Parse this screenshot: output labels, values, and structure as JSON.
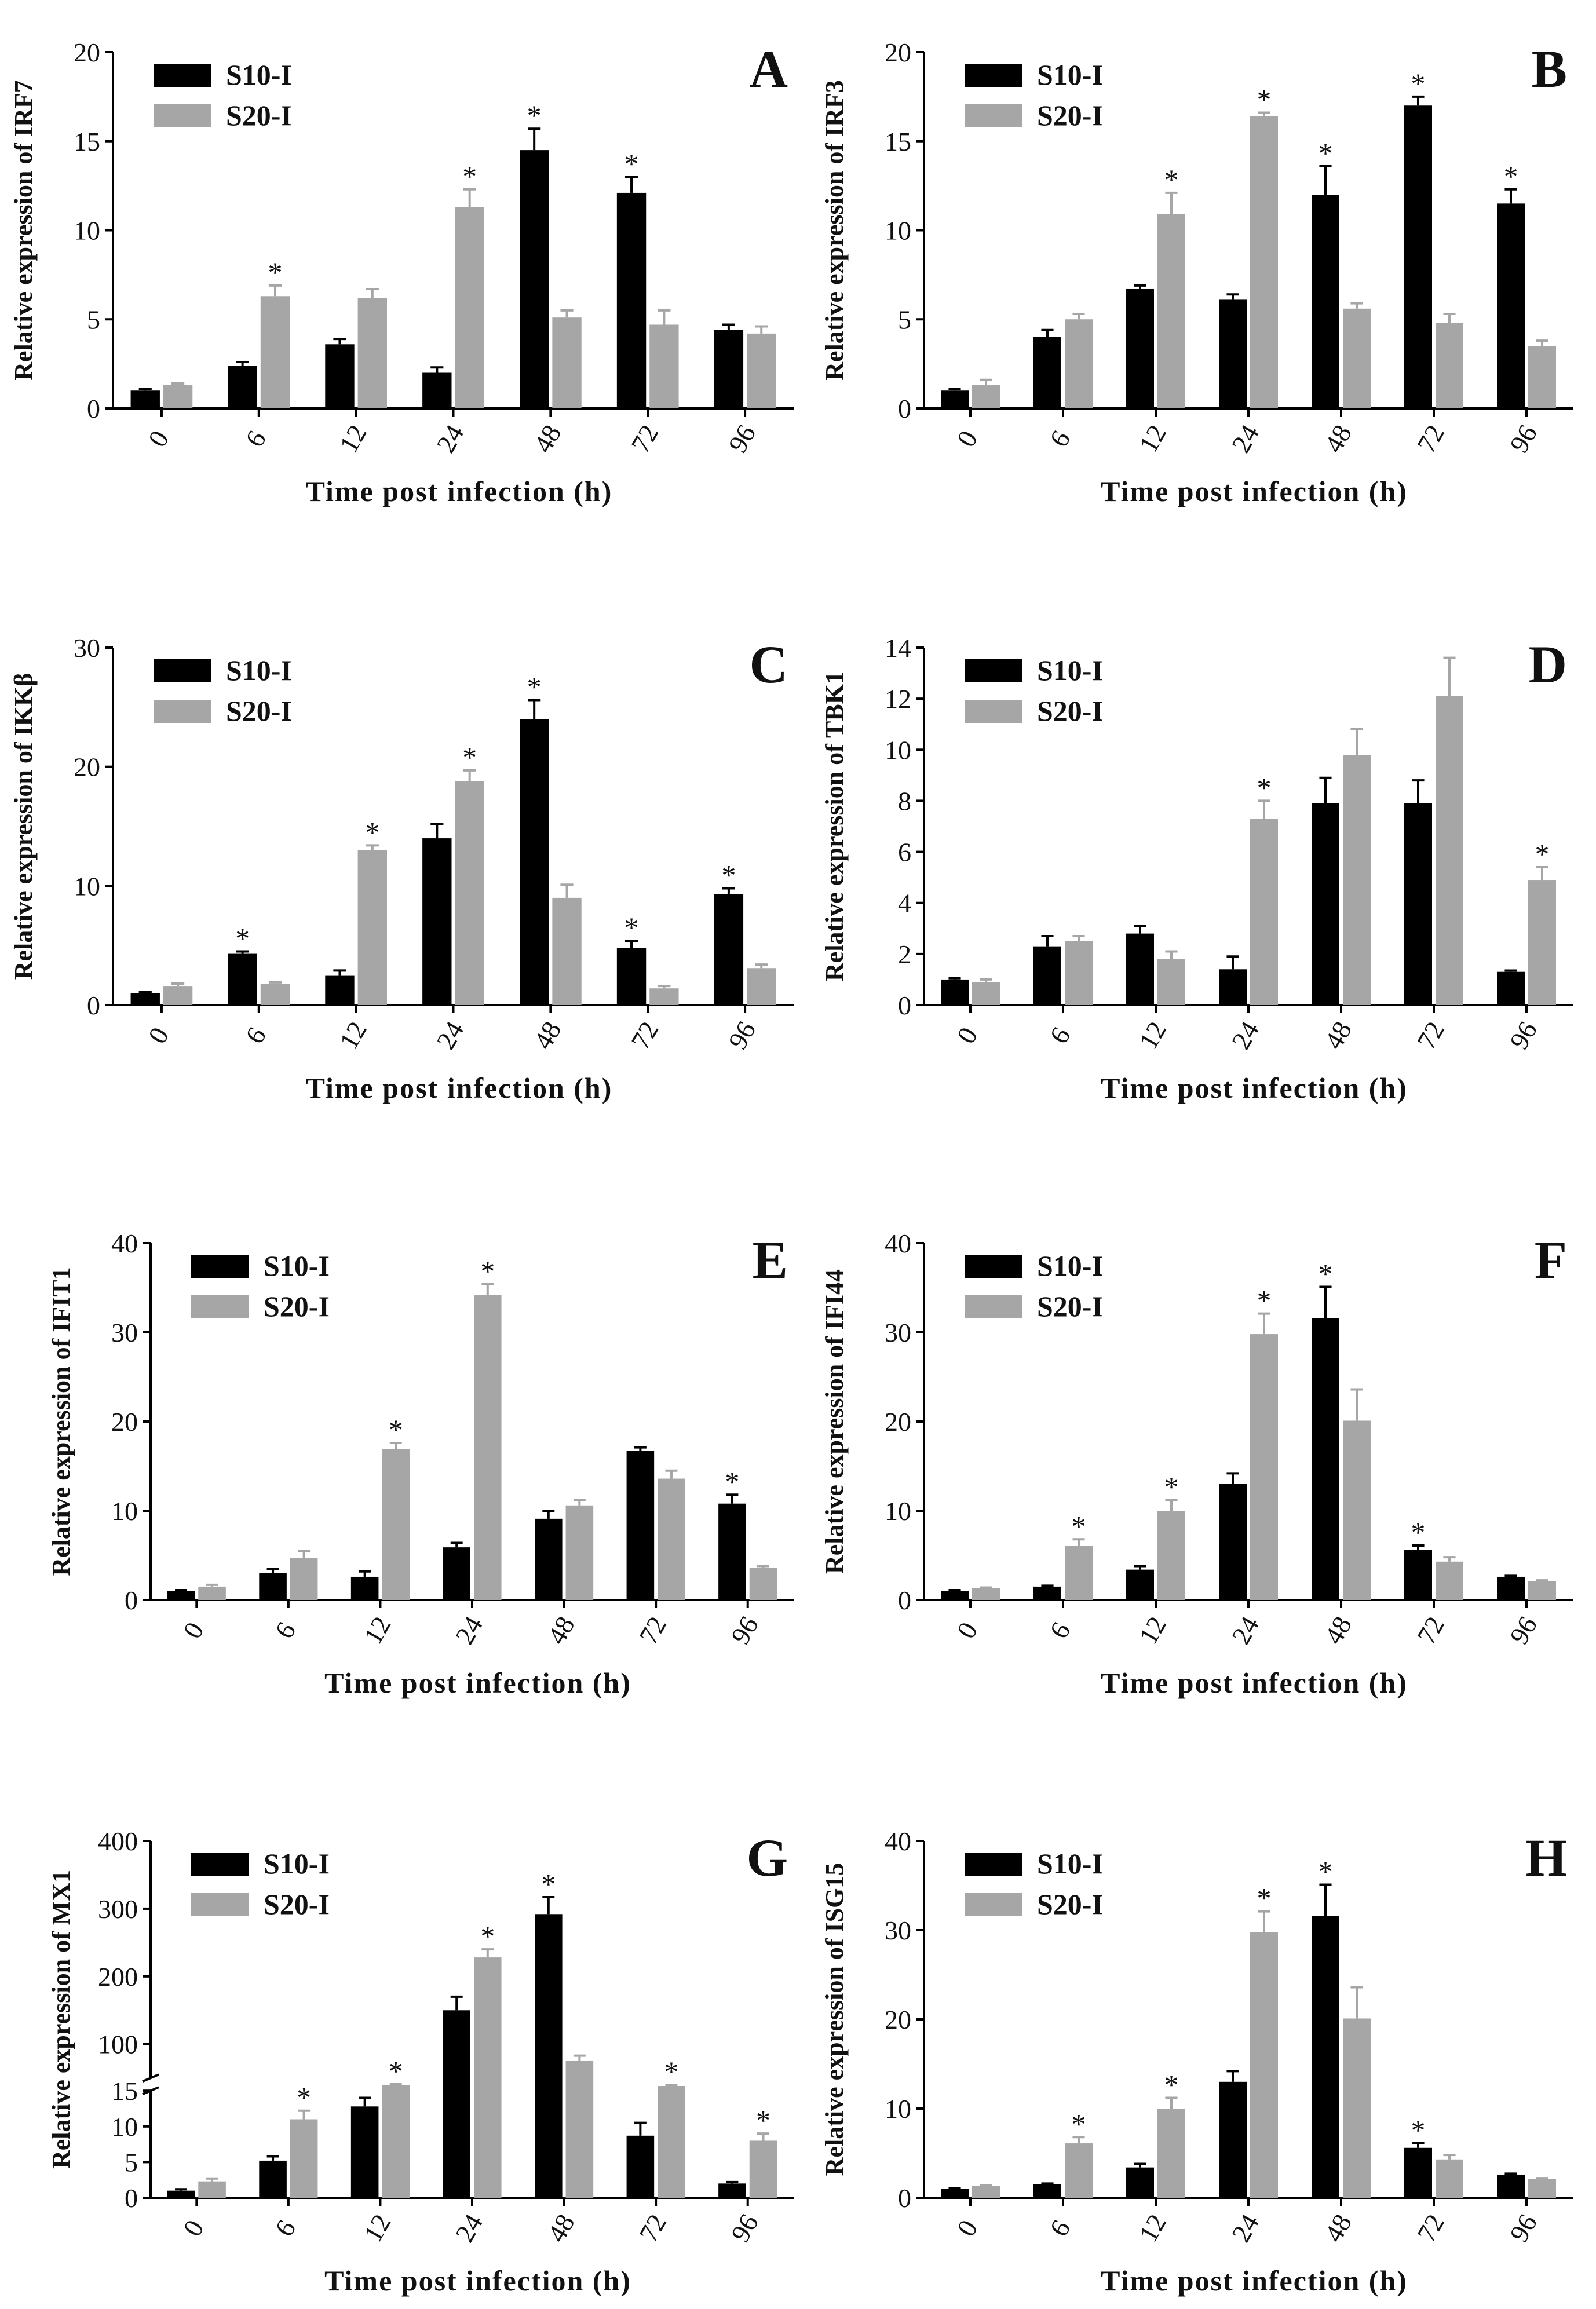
{
  "figure_title": "",
  "colors": {
    "S10-I": "#000000",
    "S20-I": "#a6a6a6"
  },
  "chart_data": [
    {
      "panel": "A",
      "type": "bar",
      "categories": [
        "0",
        "6",
        "12",
        "24",
        "48",
        "72",
        "96"
      ],
      "xlabel": "Time post infection (h)",
      "ylabel": "Relative expression of IRF7",
      "ylim": [
        0,
        20
      ],
      "yticks": [
        0,
        5,
        10,
        15,
        20
      ],
      "legend": [
        "S10-I",
        "S20-I"
      ],
      "series": [
        {
          "name": "S10-I",
          "values": [
            1.0,
            2.4,
            3.6,
            2.0,
            14.5,
            12.1,
            4.4
          ],
          "errors": [
            0.1,
            0.2,
            0.3,
            0.3,
            1.2,
            0.9,
            0.3
          ],
          "sig": [
            false,
            false,
            false,
            false,
            true,
            true,
            false
          ]
        },
        {
          "name": "S20-I",
          "values": [
            1.3,
            6.3,
            6.2,
            11.3,
            5.1,
            4.7,
            4.2
          ],
          "errors": [
            0.1,
            0.6,
            0.5,
            1.0,
            0.4,
            0.8,
            0.4
          ],
          "sig": [
            false,
            true,
            false,
            true,
            false,
            false,
            false
          ]
        }
      ]
    },
    {
      "panel": "B",
      "type": "bar",
      "categories": [
        "0",
        "6",
        "12",
        "24",
        "48",
        "72",
        "96"
      ],
      "xlabel": "Time post infection (h)",
      "ylabel": "Relative expression of IRF3",
      "ylim": [
        0,
        20
      ],
      "yticks": [
        0,
        5,
        10,
        15,
        20
      ],
      "legend": [
        "S10-I",
        "S20-I"
      ],
      "series": [
        {
          "name": "S10-I",
          "values": [
            1.0,
            4.0,
            6.7,
            6.1,
            12.0,
            17.0,
            11.5
          ],
          "errors": [
            0.1,
            0.4,
            0.2,
            0.3,
            1.6,
            0.5,
            0.8
          ],
          "sig": [
            false,
            false,
            false,
            false,
            true,
            true,
            true
          ]
        },
        {
          "name": "S20-I",
          "values": [
            1.3,
            5.0,
            10.9,
            16.4,
            5.6,
            4.8,
            3.5
          ],
          "errors": [
            0.3,
            0.3,
            1.2,
            0.2,
            0.3,
            0.5,
            0.3
          ],
          "sig": [
            false,
            false,
            true,
            true,
            false,
            false,
            false
          ]
        }
      ]
    },
    {
      "panel": "C",
      "type": "bar",
      "categories": [
        "0",
        "6",
        "12",
        "24",
        "48",
        "72",
        "96"
      ],
      "xlabel": "Time post infection (h)",
      "ylabel": "Relative expression of IKKβ",
      "ylim": [
        0,
        30
      ],
      "yticks": [
        0,
        10,
        20,
        30
      ],
      "legend": [
        "S10-I",
        "S20-I"
      ],
      "series": [
        {
          "name": "S10-I",
          "values": [
            1.0,
            4.3,
            2.5,
            14.0,
            24.0,
            4.8,
            9.3
          ],
          "errors": [
            0.1,
            0.2,
            0.4,
            1.2,
            1.6,
            0.6,
            0.5
          ],
          "sig": [
            false,
            true,
            false,
            false,
            true,
            true,
            true
          ]
        },
        {
          "name": "S20-I",
          "values": [
            1.6,
            1.8,
            13.0,
            18.8,
            9.0,
            1.4,
            3.1
          ],
          "errors": [
            0.2,
            0.1,
            0.4,
            0.9,
            1.1,
            0.2,
            0.3
          ],
          "sig": [
            false,
            false,
            true,
            true,
            false,
            false,
            false
          ]
        }
      ]
    },
    {
      "panel": "D",
      "type": "bar",
      "categories": [
        "0",
        "6",
        "12",
        "24",
        "48",
        "72",
        "96"
      ],
      "xlabel": "Time post infection (h)",
      "ylabel": "Relative expression of TBK1",
      "ylim": [
        0,
        14
      ],
      "yticks": [
        0,
        2,
        4,
        6,
        8,
        10,
        12,
        14
      ],
      "legend": [
        "S10-I",
        "S20-I"
      ],
      "series": [
        {
          "name": "S10-I",
          "values": [
            1.0,
            2.3,
            2.8,
            1.4,
            7.9,
            7.9,
            1.3
          ],
          "errors": [
            0.05,
            0.4,
            0.3,
            0.5,
            1.0,
            0.9,
            0.05
          ],
          "sig": [
            false,
            false,
            false,
            false,
            false,
            false,
            false
          ]
        },
        {
          "name": "S20-I",
          "values": [
            0.9,
            2.5,
            1.8,
            7.3,
            9.8,
            12.1,
            4.9
          ],
          "errors": [
            0.1,
            0.2,
            0.3,
            0.7,
            1.0,
            1.5,
            0.5
          ],
          "sig": [
            false,
            false,
            false,
            true,
            false,
            false,
            true
          ]
        }
      ]
    },
    {
      "panel": "E",
      "type": "bar",
      "categories": [
        "0",
        "6",
        "12",
        "24",
        "48",
        "72",
        "96"
      ],
      "xlabel": "Time post infection (h)",
      "ylabel": "Relative expression of IFIT1",
      "ylim": [
        0,
        40
      ],
      "yticks": [
        0,
        10,
        20,
        30,
        40
      ],
      "legend": [
        "S10-I",
        "S20-I"
      ],
      "series": [
        {
          "name": "S10-I",
          "values": [
            1.0,
            3.0,
            2.6,
            5.9,
            9.1,
            16.7,
            10.8
          ],
          "errors": [
            0.1,
            0.5,
            0.6,
            0.5,
            0.9,
            0.4,
            1.0
          ],
          "sig": [
            false,
            false,
            false,
            false,
            false,
            false,
            true
          ]
        },
        {
          "name": "S20-I",
          "values": [
            1.5,
            4.7,
            16.9,
            34.2,
            10.6,
            13.6,
            3.6
          ],
          "errors": [
            0.2,
            0.8,
            0.7,
            1.2,
            0.6,
            0.9,
            0.2
          ],
          "sig": [
            false,
            false,
            true,
            true,
            false,
            false,
            false
          ]
        }
      ]
    },
    {
      "panel": "F",
      "type": "bar",
      "categories": [
        "0",
        "6",
        "12",
        "24",
        "48",
        "72",
        "96"
      ],
      "xlabel": "Time post infection (h)",
      "ylabel": "Relative expression of IFI44",
      "ylim": [
        0,
        40
      ],
      "yticks": [
        0,
        10,
        20,
        30,
        40
      ],
      "legend": [
        "S10-I",
        "S20-I"
      ],
      "series": [
        {
          "name": "S10-I",
          "values": [
            1.0,
            1.5,
            3.4,
            13.0,
            31.6,
            5.6,
            2.6
          ],
          "errors": [
            0.1,
            0.1,
            0.4,
            1.2,
            3.5,
            0.5,
            0.1
          ],
          "sig": [
            false,
            false,
            false,
            false,
            true,
            true,
            false
          ]
        },
        {
          "name": "S20-I",
          "values": [
            1.3,
            6.1,
            10.0,
            29.8,
            20.1,
            4.3,
            2.1
          ],
          "errors": [
            0.1,
            0.7,
            1.2,
            2.3,
            3.5,
            0.5,
            0.1
          ],
          "sig": [
            false,
            true,
            true,
            true,
            false,
            false,
            false
          ]
        }
      ]
    },
    {
      "panel": "G",
      "type": "bar",
      "categories": [
        "0",
        "6",
        "12",
        "24",
        "48",
        "72",
        "96"
      ],
      "xlabel": "Time post infection (h)",
      "ylabel": "Relative expression of MX1",
      "ylim": [
        0,
        400
      ],
      "yticks": [
        0,
        5,
        10,
        15,
        100,
        200,
        300,
        400
      ],
      "axis_break": [
        15,
        50
      ],
      "legend": [
        "S10-I",
        "S20-I"
      ],
      "series": [
        {
          "name": "S10-I",
          "values": [
            1.0,
            5.2,
            12.8,
            150,
            292,
            8.7,
            2.0
          ],
          "errors": [
            0.2,
            0.6,
            1.2,
            20,
            25,
            1.8,
            0.2
          ],
          "sig": [
            false,
            false,
            false,
            false,
            true,
            false,
            false
          ]
        },
        {
          "name": "S20-I",
          "values": [
            2.3,
            11.0,
            30,
            228,
            75,
            28,
            8.0
          ],
          "errors": [
            0.4,
            1.2,
            3,
            12,
            8,
            3,
            1.0
          ],
          "sig": [
            false,
            true,
            true,
            true,
            false,
            true,
            true
          ]
        }
      ]
    },
    {
      "panel": "H",
      "type": "bar",
      "categories": [
        "0",
        "6",
        "12",
        "24",
        "48",
        "72",
        "96"
      ],
      "xlabel": "Time post infection (h)",
      "ylabel": "Relative expression of ISG15",
      "ylim": [
        0,
        40
      ],
      "yticks": [
        0,
        10,
        20,
        30,
        40
      ],
      "legend": [
        "S10-I",
        "S20-I"
      ],
      "series": [
        {
          "name": "S10-I",
          "values": [
            1.0,
            1.5,
            3.4,
            13.0,
            31.6,
            5.6,
            2.6
          ],
          "errors": [
            0.1,
            0.1,
            0.4,
            1.2,
            3.5,
            0.5,
            0.1
          ],
          "sig": [
            false,
            false,
            false,
            false,
            true,
            true,
            false
          ]
        },
        {
          "name": "S20-I",
          "values": [
            1.3,
            6.1,
            10.0,
            29.8,
            20.1,
            4.3,
            2.1
          ],
          "errors": [
            0.1,
            0.7,
            1.2,
            2.3,
            3.5,
            0.5,
            0.1
          ],
          "sig": [
            false,
            true,
            true,
            true,
            false,
            false,
            false
          ]
        }
      ]
    }
  ]
}
